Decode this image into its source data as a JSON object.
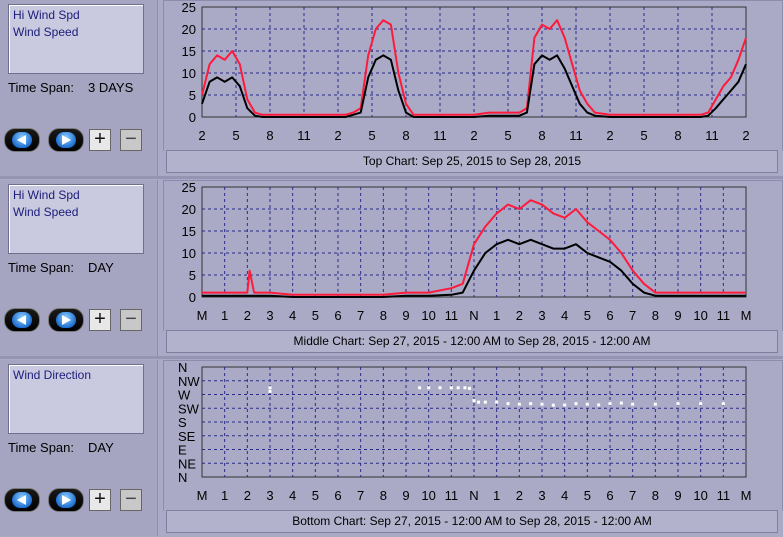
{
  "panels": [
    {
      "legend": [
        "Hi Wind Spd",
        "Wind Speed"
      ],
      "time_span_label": "Time Span:",
      "time_span_value": "3 DAYS",
      "caption": "Top Chart:  Sep 25, 2015  to  Sep 28, 2015"
    },
    {
      "legend": [
        "Hi Wind Spd",
        "Wind Speed"
      ],
      "time_span_label": "Time Span:",
      "time_span_value": "DAY",
      "caption": "Middle Chart:  Sep 27, 2015 - 12:00 AM  to  Sep 28, 2015 - 12:00 AM"
    },
    {
      "legend": [
        "Wind Direction"
      ],
      "time_span_label": "Time Span:",
      "time_span_value": "DAY",
      "caption": "Bottom Chart:  Sep 27, 2015 - 12:00 AM  to  Sep 28, 2015 - 12:00 AM"
    }
  ],
  "controls": {
    "plus": "+",
    "minus": "−"
  },
  "colors": {
    "hi_wind": "#ff1a3c",
    "wind": "#000000",
    "direction": "#ffffff",
    "grid": "#2a2a8a",
    "plot_bg": "#aaaac6"
  },
  "chart_data": [
    {
      "type": "line",
      "x_ticks": [
        "2",
        "5",
        "8",
        "11",
        "2",
        "5",
        "8",
        "11",
        "2",
        "5",
        "8",
        "11",
        "2",
        "5",
        "8",
        "11",
        "2"
      ],
      "ylim": [
        0,
        25
      ],
      "y_ticks": [
        0,
        5,
        10,
        15,
        20,
        25
      ],
      "x_unit": "hours since start of Sep 25 02:00",
      "x_range": [
        0,
        72
      ],
      "series": [
        {
          "name": "Hi Wind Spd",
          "x": [
            0,
            1,
            2,
            3,
            4,
            5,
            6,
            7,
            8,
            9,
            10,
            12,
            14,
            16,
            18,
            19,
            20,
            21,
            22,
            23,
            24,
            25,
            26,
            27,
            28,
            30,
            32,
            34,
            36,
            38,
            40,
            42,
            43,
            44,
            45,
            46,
            47,
            48,
            49,
            50,
            51,
            52,
            54,
            56,
            58,
            60,
            62,
            64,
            66,
            67,
            68,
            69,
            70,
            71,
            72
          ],
          "y": [
            5,
            12,
            14,
            13,
            15,
            12,
            4,
            1,
            0.5,
            0.5,
            0.5,
            0.5,
            0.5,
            0.5,
            0.5,
            0.5,
            1,
            2,
            14,
            20,
            22,
            21,
            10,
            3,
            0.5,
            0.5,
            0.5,
            0.5,
            0.5,
            1,
            1,
            1,
            2,
            18,
            21,
            20,
            22,
            18,
            12,
            6,
            3,
            1,
            0.5,
            0.5,
            0.5,
            0.5,
            0.5,
            0.5,
            0.5,
            1,
            4,
            7,
            9,
            13,
            18
          ]
        },
        {
          "name": "Wind Speed",
          "x": [
            0,
            1,
            2,
            3,
            4,
            5,
            6,
            7,
            8,
            9,
            10,
            12,
            14,
            16,
            18,
            19,
            20,
            21,
            22,
            23,
            24,
            25,
            26,
            27,
            28,
            30,
            32,
            34,
            36,
            38,
            40,
            42,
            43,
            44,
            45,
            46,
            47,
            48,
            49,
            50,
            51,
            52,
            54,
            56,
            58,
            60,
            62,
            64,
            66,
            67,
            68,
            69,
            70,
            71,
            72
          ],
          "y": [
            3,
            8,
            9,
            8,
            9,
            7,
            2,
            0.3,
            0,
            0,
            0,
            0,
            0,
            0,
            0,
            0,
            0.5,
            1,
            9,
            13,
            14,
            13,
            6,
            1,
            0,
            0,
            0,
            0,
            0,
            0.3,
            0.3,
            0.3,
            1,
            12,
            14,
            13,
            14,
            11,
            7,
            3,
            1,
            0.3,
            0,
            0,
            0,
            0,
            0,
            0,
            0,
            0.3,
            2,
            4,
            6,
            8,
            12
          ]
        }
      ]
    },
    {
      "type": "line",
      "x_ticks": [
        "M",
        "1",
        "2",
        "3",
        "4",
        "5",
        "6",
        "7",
        "8",
        "9",
        "10",
        "11",
        "N",
        "1",
        "2",
        "3",
        "4",
        "5",
        "6",
        "7",
        "8",
        "9",
        "10",
        "11",
        "M"
      ],
      "ylim": [
        0,
        25
      ],
      "y_ticks": [
        0,
        5,
        10,
        15,
        20,
        25
      ],
      "x_range": [
        0,
        24
      ],
      "series": [
        {
          "name": "Hi Wind Spd",
          "x": [
            0,
            1,
            2,
            2.1,
            2.3,
            3,
            4,
            5,
            6,
            7,
            8,
            9,
            10,
            11,
            11.5,
            12,
            12.5,
            13,
            13.5,
            14,
            14.5,
            15,
            15.5,
            16,
            16.5,
            17,
            17.5,
            18,
            18.5,
            19,
            19.5,
            20,
            21,
            22,
            23,
            24
          ],
          "y": [
            1,
            1,
            1,
            6,
            1,
            1,
            0.5,
            0.5,
            0.5,
            0.5,
            0.5,
            1,
            1,
            2,
            3,
            12,
            16,
            19,
            21,
            20,
            22,
            21,
            19,
            18,
            20,
            17,
            15,
            13,
            10,
            6,
            3,
            1,
            1,
            1,
            1,
            1
          ]
        },
        {
          "name": "Wind Speed",
          "x": [
            0,
            1,
            2,
            3,
            4,
            5,
            6,
            7,
            8,
            9,
            10,
            11,
            11.5,
            12,
            12.5,
            13,
            13.5,
            14,
            14.5,
            15,
            15.5,
            16,
            16.5,
            17,
            17.5,
            18,
            18.5,
            19,
            19.5,
            20,
            21,
            22,
            23,
            24
          ],
          "y": [
            0.3,
            0.3,
            0.3,
            0.3,
            0,
            0,
            0,
            0,
            0,
            0.3,
            0.3,
            0.5,
            1,
            6,
            10,
            12,
            13,
            12,
            13,
            12,
            11,
            11,
            12,
            10,
            9,
            8,
            6,
            3,
            1,
            0.3,
            0.3,
            0.3,
            0.3,
            0.3
          ]
        }
      ]
    },
    {
      "type": "scatter",
      "x_ticks": [
        "M",
        "1",
        "2",
        "3",
        "4",
        "5",
        "6",
        "7",
        "8",
        "9",
        "10",
        "11",
        "N",
        "1",
        "2",
        "3",
        "4",
        "5",
        "6",
        "7",
        "8",
        "9",
        "10",
        "11",
        "M"
      ],
      "y_ticks": [
        "N",
        "NW",
        "W",
        "SW",
        "S",
        "SE",
        "E",
        "NE",
        "N"
      ],
      "x_range": [
        0,
        24
      ],
      "series": [
        {
          "name": "Wind Direction",
          "x": [
            3.0,
            3.0,
            9.6,
            10,
            10.5,
            11,
            11.3,
            11.6,
            11.8,
            12,
            12.2,
            12.5,
            13,
            13.5,
            14,
            14.5,
            15,
            15.5,
            16,
            16.5,
            17,
            17.5,
            18,
            18.5,
            19,
            20,
            21,
            22,
            23
          ],
          "y": [
            292,
            280,
            292,
            292,
            292,
            292,
            292,
            292,
            290,
            250,
            245,
            245,
            245,
            240,
            238,
            240,
            238,
            235,
            236,
            240,
            238,
            236,
            240,
            242,
            238,
            238,
            240,
            240,
            240
          ]
        }
      ]
    }
  ]
}
